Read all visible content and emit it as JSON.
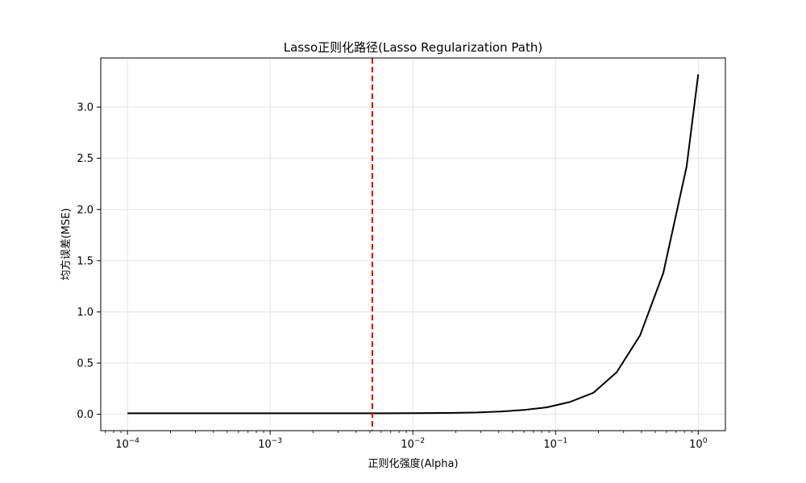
{
  "chart_data": {
    "type": "line",
    "title": "Lasso正则化路径(Lasso Regularization Path)",
    "xlabel": "正则化强度(Alpha)",
    "ylabel": "均方误差(MSE)",
    "xscale": "log",
    "xlim": [
      6.5e-05,
      1.55
    ],
    "ylim": [
      -0.16,
      3.48
    ],
    "grid": true,
    "x_ticks": [
      {
        "value": 0.0001,
        "base": "10",
        "exp": "−4"
      },
      {
        "value": 0.001,
        "base": "10",
        "exp": "−3"
      },
      {
        "value": 0.01,
        "base": "10",
        "exp": "−2"
      },
      {
        "value": 0.1,
        "base": "10",
        "exp": "−1"
      },
      {
        "value": 1,
        "base": "10",
        "exp": "0"
      }
    ],
    "y_ticks": [
      {
        "value": 0.0,
        "label": "0.0"
      },
      {
        "value": 0.5,
        "label": "0.5"
      },
      {
        "value": 1.0,
        "label": "1.0"
      },
      {
        "value": 1.5,
        "label": "1.5"
      },
      {
        "value": 2.0,
        "label": "2.0"
      },
      {
        "value": 2.5,
        "label": "2.5"
      },
      {
        "value": 3.0,
        "label": "3.0"
      }
    ],
    "series": [
      {
        "color": "#000000",
        "x": [
          0.0001,
          0.000146,
          0.000212,
          0.000309,
          0.00045,
          0.000655,
          0.000954,
          0.00139,
          0.00202,
          0.00295,
          0.00429,
          0.00625,
          0.0091,
          0.0133,
          0.0193,
          0.0281,
          0.0409,
          0.0596,
          0.0869,
          0.126,
          0.184,
          0.268,
          0.391,
          0.569,
          0.829,
          1.0
        ],
        "y": [
          0.01,
          0.01,
          0.01,
          0.01,
          0.01,
          0.01,
          0.01,
          0.01,
          0.01,
          0.01,
          0.01,
          0.01,
          0.011,
          0.012,
          0.014,
          0.018,
          0.027,
          0.042,
          0.068,
          0.12,
          0.21,
          0.41,
          0.77,
          1.38,
          2.42,
          3.32
        ]
      }
    ],
    "vline": {
      "x": 0.0052,
      "color": "#dd0000",
      "style": "dashed"
    }
  }
}
